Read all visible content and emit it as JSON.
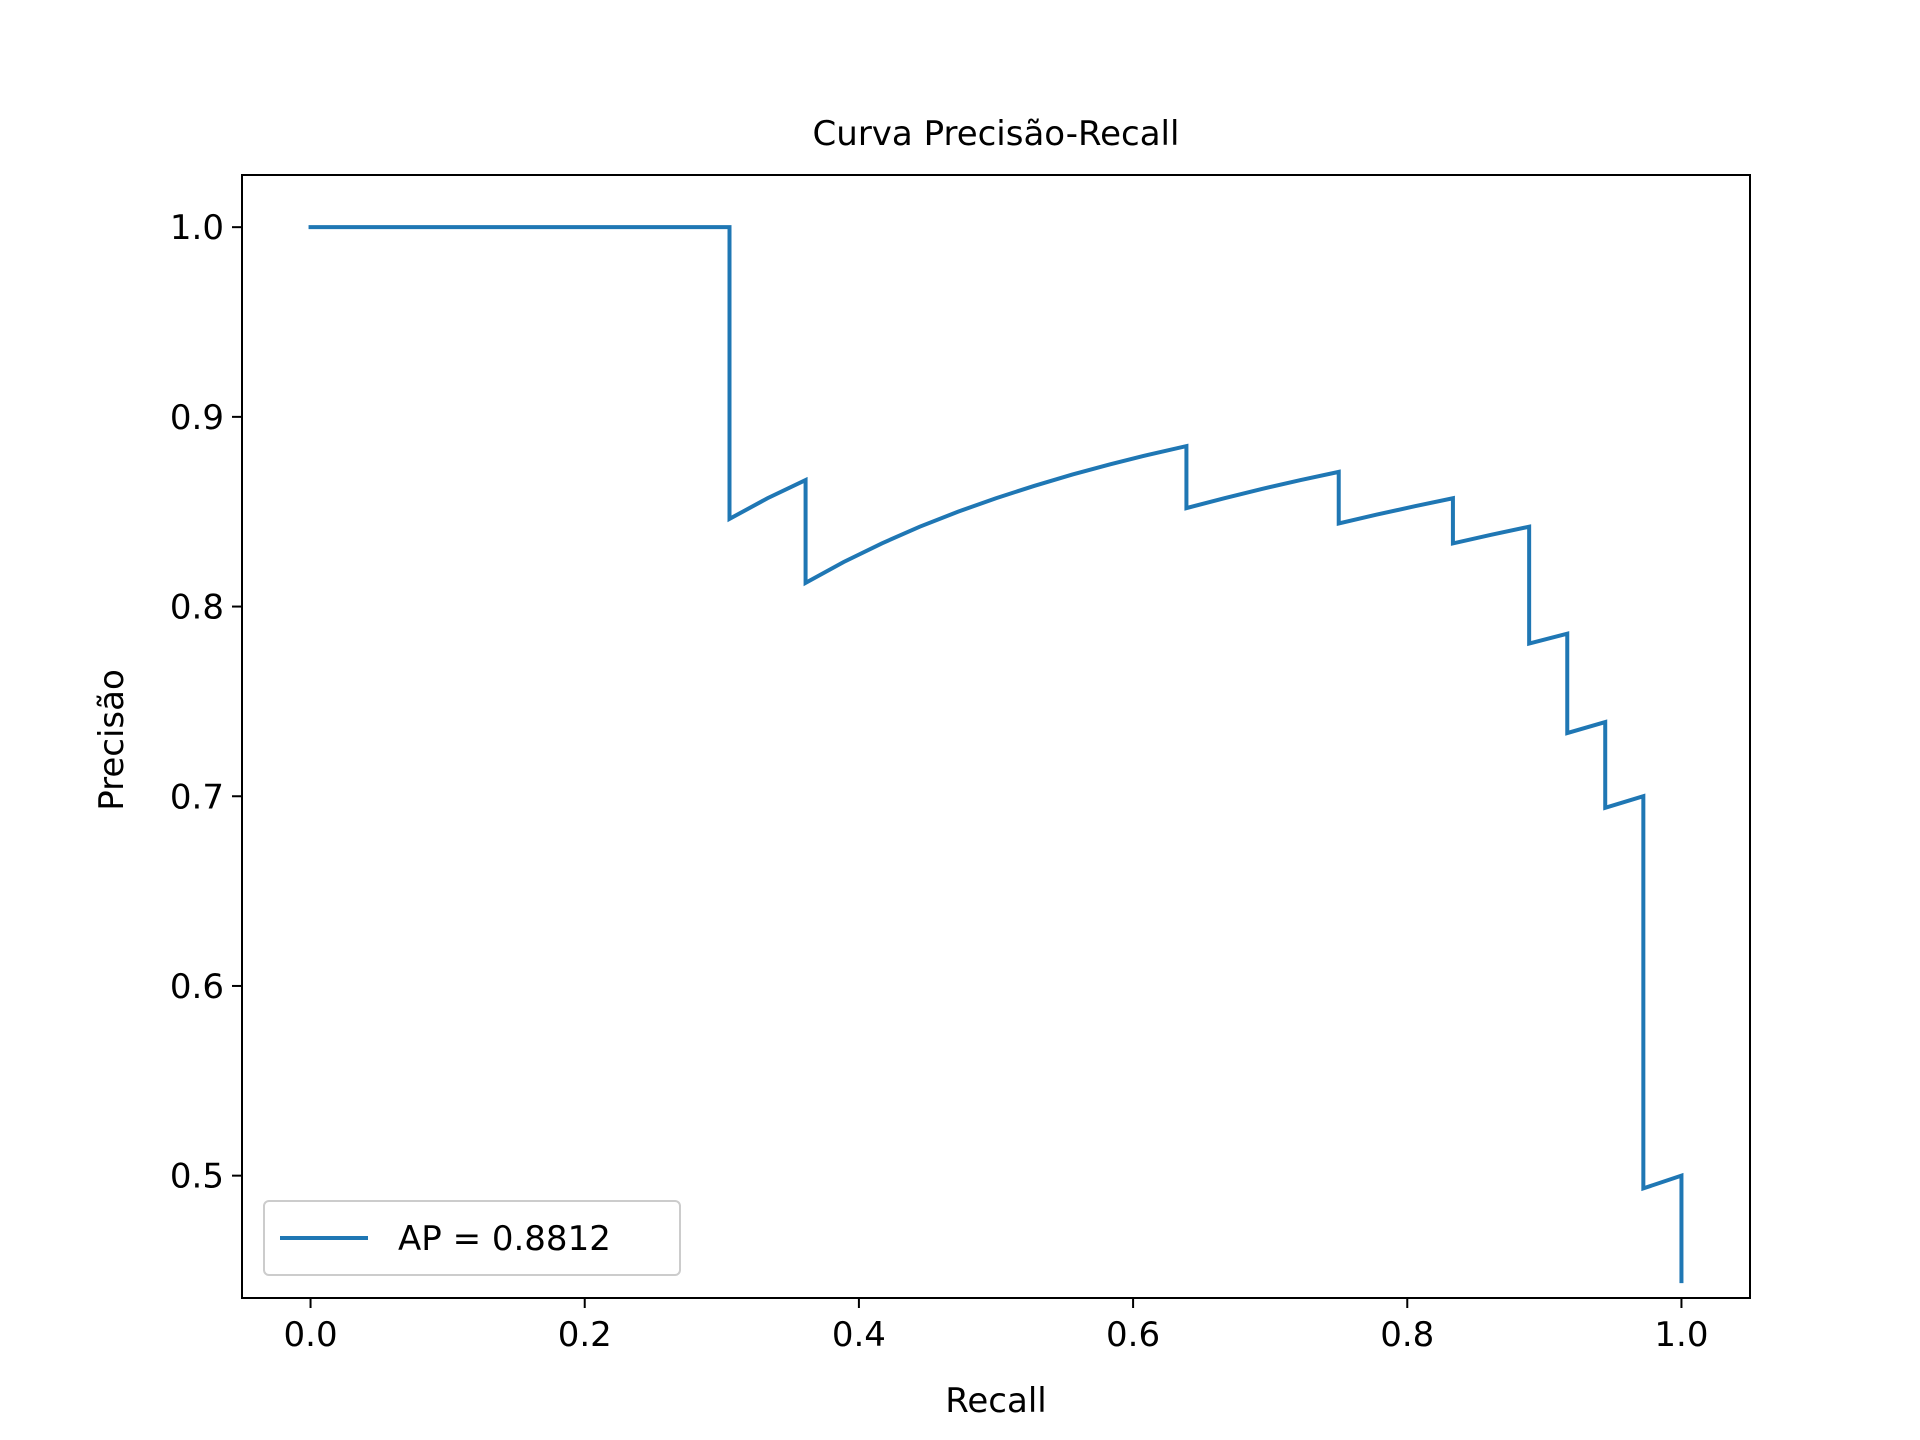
{
  "chart_data": {
    "type": "line",
    "title": "Curva Precisão-Recall",
    "xlabel": "Recall",
    "ylabel": "Precisão",
    "xlim": [
      -0.05,
      1.05
    ],
    "ylim": [
      0.4355,
      1.0275
    ],
    "xticks": [
      0.0,
      0.2,
      0.4,
      0.6,
      0.8,
      1.0
    ],
    "xtick_labels": [
      "0.0",
      "0.2",
      "0.4",
      "0.6",
      "0.8",
      "1.0"
    ],
    "yticks": [
      0.5,
      0.6,
      0.7,
      0.8,
      0.9,
      1.0
    ],
    "ytick_labels": [
      "0.5",
      "0.6",
      "0.7",
      "0.8",
      "0.9",
      "1.0"
    ],
    "grid": false,
    "legend_position": "lower-left",
    "series": [
      {
        "name": "AP = 0.8812",
        "color": "#1f77b4",
        "x": [
          0.0,
          0.3056,
          0.3056,
          0.3333,
          0.3611,
          0.3611,
          0.3889,
          0.4167,
          0.4444,
          0.4722,
          0.5,
          0.5278,
          0.5556,
          0.5833,
          0.6111,
          0.6389,
          0.6389,
          0.6667,
          0.6944,
          0.7222,
          0.75,
          0.75,
          0.7778,
          0.8056,
          0.8333,
          0.8333,
          0.8611,
          0.8889,
          0.8889,
          0.9167,
          0.9167,
          0.9444,
          0.9444,
          0.9722,
          0.9722,
          1.0,
          1.0
        ],
        "y": [
          1.0,
          1.0,
          0.8462,
          0.8571,
          0.8667,
          0.8125,
          0.8235,
          0.8333,
          0.8421,
          0.85,
          0.8571,
          0.8636,
          0.8696,
          0.875,
          0.88,
          0.8846,
          0.8519,
          0.8571,
          0.8621,
          0.8667,
          0.871,
          0.8438,
          0.8485,
          0.8529,
          0.8571,
          0.8333,
          0.8378,
          0.8421,
          0.7805,
          0.7857,
          0.7333,
          0.7391,
          0.6939,
          0.7,
          0.4933,
          0.5,
          0.4444
        ]
      }
    ]
  }
}
